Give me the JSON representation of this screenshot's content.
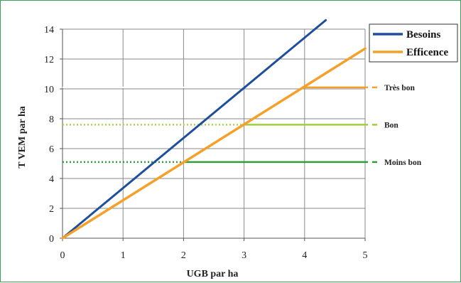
{
  "chart_data": {
    "type": "line",
    "xlabel": "UGB par ha",
    "ylabel": "T VEM par ha",
    "xlim": [
      0,
      5
    ],
    "ylim": [
      0,
      14
    ],
    "x_ticks": [
      "0",
      "1",
      "2",
      "3",
      "4",
      "5"
    ],
    "y_ticks": [
      "0",
      "2",
      "4",
      "6",
      "8",
      "10",
      "12",
      "14"
    ],
    "grid": true,
    "legend_position": "top-right",
    "series": [
      {
        "name": "Besoins",
        "color": "#1f4e9c",
        "x": [
          0,
          4.35
        ],
        "y": [
          0,
          14.6
        ]
      },
      {
        "name": "Efficence",
        "color": "#f5a028",
        "x": [
          0,
          5
        ],
        "y": [
          0,
          12.7
        ]
      }
    ],
    "reference_lines": [
      {
        "label": "Très bon",
        "y": 10.1,
        "color": "#f5a028",
        "dotted_to": 0,
        "solid_from": 4.0,
        "dotted_color": "#ffffff"
      },
      {
        "label": "Bon",
        "y": 7.6,
        "color": "#9ed03c",
        "dotted_to": 3.0,
        "solid_from": 3.0,
        "dotted_color": "#a8d84a"
      },
      {
        "label": "Moins bon",
        "y": 5.1,
        "color": "#2e9e3e",
        "dotted_to": 2.0,
        "solid_from": 2.0,
        "dotted_color": "#2e9e3e"
      }
    ]
  }
}
